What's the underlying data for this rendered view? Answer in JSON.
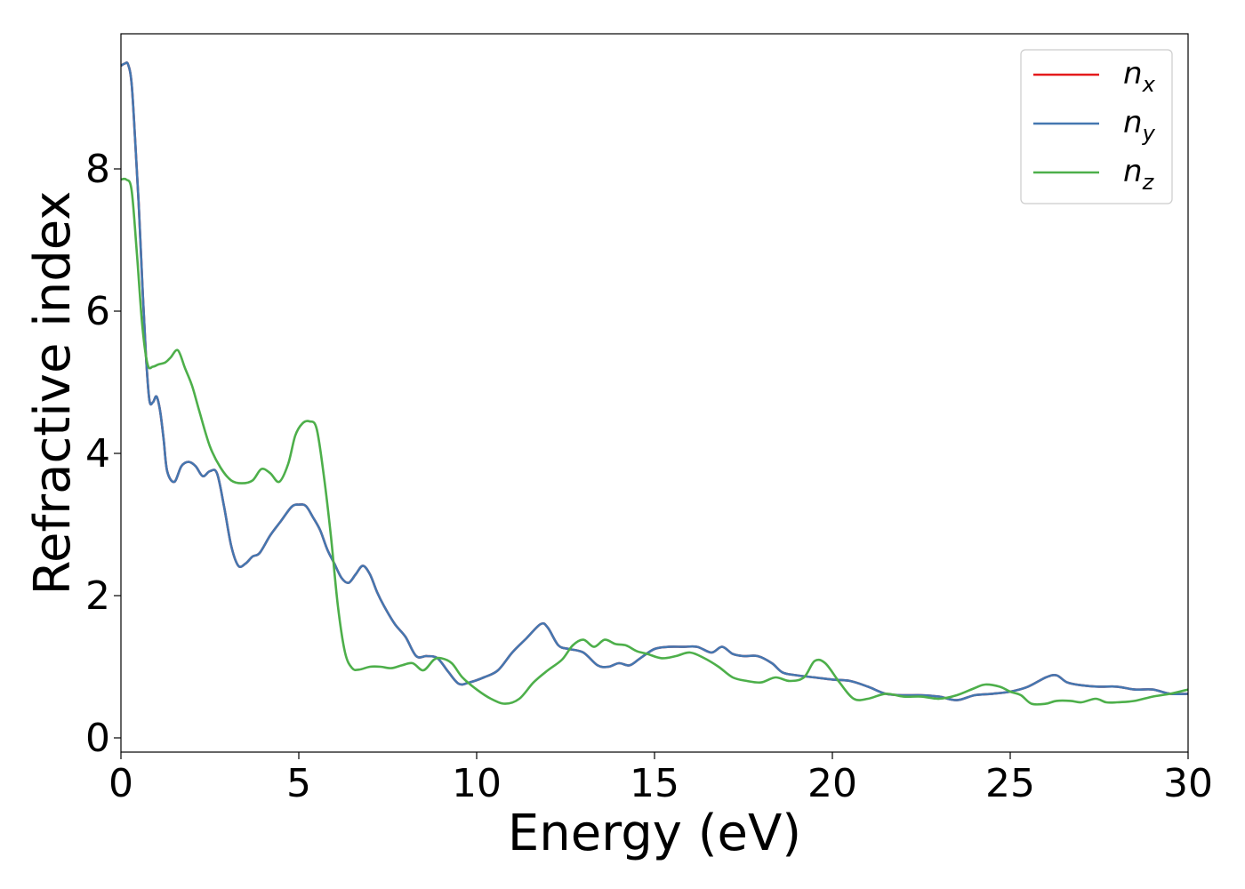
{
  "chart_data": {
    "type": "line",
    "title": "",
    "xlabel": "Energy (eV)",
    "ylabel": "Refractive index",
    "xlim": [
      0,
      30
    ],
    "ylim": [
      -0.2,
      9.9
    ],
    "xticks": [
      0,
      5,
      10,
      15,
      20,
      25,
      30
    ],
    "xtick_labels": [
      "0",
      "5",
      "10",
      "15",
      "20",
      "25",
      "30"
    ],
    "yticks": [
      0,
      2,
      4,
      6,
      8
    ],
    "ytick_labels": [
      "0",
      "2",
      "4",
      "6",
      "8"
    ],
    "grid": false,
    "legend_position": "top-right",
    "series": [
      {
        "name": "n_x",
        "label_base": "n",
        "label_sub": "x",
        "color": "#e41a1c",
        "x": [
          0,
          0.1,
          0.2,
          0.3,
          0.4,
          0.5,
          0.6,
          0.7,
          0.8,
          0.9,
          1.0,
          1.1,
          1.2,
          1.3,
          1.5,
          1.7,
          1.9,
          2.1,
          2.3,
          2.5,
          2.7,
          2.9,
          3.1,
          3.3,
          3.5,
          3.7,
          3.9,
          4.2,
          4.5,
          4.8,
          5.0,
          5.2,
          5.4,
          5.6,
          5.8,
          6.0,
          6.2,
          6.4,
          6.6,
          6.8,
          7.0,
          7.2,
          7.4,
          7.7,
          8.0,
          8.3,
          8.6,
          8.9,
          9.2,
          9.5,
          9.8,
          10.2,
          10.6,
          11.0,
          11.4,
          11.8,
          12.0,
          12.3,
          12.6,
          13.0,
          13.4,
          13.7,
          14.0,
          14.3,
          14.6,
          15.0,
          15.4,
          15.8,
          16.2,
          16.6,
          16.9,
          17.2,
          17.5,
          17.9,
          18.3,
          18.6,
          19.0,
          19.5,
          20.0,
          20.5,
          21.0,
          21.5,
          22.0,
          22.5,
          23.0,
          23.5,
          24.0,
          24.5,
          25.0,
          25.5,
          26.0,
          26.3,
          26.6,
          27.0,
          27.5,
          28.0,
          28.5,
          29.0,
          29.5,
          30.0
        ],
        "y": [
          9.45,
          9.48,
          9.47,
          9.2,
          8.4,
          7.5,
          6.4,
          5.4,
          4.75,
          4.72,
          4.8,
          4.6,
          4.2,
          3.75,
          3.6,
          3.82,
          3.88,
          3.82,
          3.68,
          3.75,
          3.72,
          3.25,
          2.7,
          2.42,
          2.45,
          2.55,
          2.6,
          2.85,
          3.05,
          3.25,
          3.28,
          3.26,
          3.1,
          2.92,
          2.65,
          2.45,
          2.25,
          2.18,
          2.3,
          2.42,
          2.3,
          2.05,
          1.85,
          1.6,
          1.42,
          1.15,
          1.15,
          1.12,
          0.93,
          0.76,
          0.78,
          0.85,
          0.95,
          1.2,
          1.4,
          1.6,
          1.55,
          1.3,
          1.25,
          1.2,
          1.02,
          1.0,
          1.05,
          1.02,
          1.12,
          1.25,
          1.28,
          1.28,
          1.28,
          1.2,
          1.28,
          1.18,
          1.15,
          1.15,
          1.05,
          0.92,
          0.88,
          0.85,
          0.82,
          0.8,
          0.72,
          0.62,
          0.6,
          0.6,
          0.58,
          0.53,
          0.6,
          0.62,
          0.65,
          0.72,
          0.85,
          0.88,
          0.78,
          0.74,
          0.72,
          0.72,
          0.68,
          0.68,
          0.62,
          0.62
        ]
      },
      {
        "name": "n_y",
        "label_base": "n",
        "label_sub": "y",
        "color": "#4477b0",
        "x": [
          0,
          0.1,
          0.2,
          0.3,
          0.4,
          0.5,
          0.6,
          0.7,
          0.8,
          0.9,
          1.0,
          1.1,
          1.2,
          1.3,
          1.5,
          1.7,
          1.9,
          2.1,
          2.3,
          2.5,
          2.7,
          2.9,
          3.1,
          3.3,
          3.5,
          3.7,
          3.9,
          4.2,
          4.5,
          4.8,
          5.0,
          5.2,
          5.4,
          5.6,
          5.8,
          6.0,
          6.2,
          6.4,
          6.6,
          6.8,
          7.0,
          7.2,
          7.4,
          7.7,
          8.0,
          8.3,
          8.6,
          8.9,
          9.2,
          9.5,
          9.8,
          10.2,
          10.6,
          11.0,
          11.4,
          11.8,
          12.0,
          12.3,
          12.6,
          13.0,
          13.4,
          13.7,
          14.0,
          14.3,
          14.6,
          15.0,
          15.4,
          15.8,
          16.2,
          16.6,
          16.9,
          17.2,
          17.5,
          17.9,
          18.3,
          18.6,
          19.0,
          19.5,
          20.0,
          20.5,
          21.0,
          21.5,
          22.0,
          22.5,
          23.0,
          23.5,
          24.0,
          24.5,
          25.0,
          25.5,
          26.0,
          26.3,
          26.6,
          27.0,
          27.5,
          28.0,
          28.5,
          29.0,
          29.5,
          30.0
        ],
        "y": [
          9.45,
          9.48,
          9.47,
          9.2,
          8.4,
          7.5,
          6.4,
          5.4,
          4.75,
          4.72,
          4.8,
          4.6,
          4.2,
          3.75,
          3.6,
          3.82,
          3.88,
          3.82,
          3.68,
          3.75,
          3.72,
          3.25,
          2.7,
          2.42,
          2.45,
          2.55,
          2.6,
          2.85,
          3.05,
          3.25,
          3.28,
          3.26,
          3.1,
          2.92,
          2.65,
          2.45,
          2.25,
          2.18,
          2.3,
          2.42,
          2.3,
          2.05,
          1.85,
          1.6,
          1.42,
          1.15,
          1.15,
          1.12,
          0.93,
          0.76,
          0.78,
          0.85,
          0.95,
          1.2,
          1.4,
          1.6,
          1.55,
          1.3,
          1.25,
          1.2,
          1.02,
          1.0,
          1.05,
          1.02,
          1.12,
          1.25,
          1.28,
          1.28,
          1.28,
          1.2,
          1.28,
          1.18,
          1.15,
          1.15,
          1.05,
          0.92,
          0.88,
          0.85,
          0.82,
          0.8,
          0.72,
          0.62,
          0.6,
          0.6,
          0.58,
          0.53,
          0.6,
          0.62,
          0.65,
          0.72,
          0.85,
          0.88,
          0.78,
          0.74,
          0.72,
          0.72,
          0.68,
          0.68,
          0.62,
          0.62
        ]
      },
      {
        "name": "n_z",
        "label_base": "n",
        "label_sub": "z",
        "color": "#4daf4a",
        "x": [
          0,
          0.15,
          0.3,
          0.45,
          0.6,
          0.75,
          0.9,
          1.05,
          1.25,
          1.4,
          1.6,
          1.8,
          2.0,
          2.2,
          2.5,
          2.8,
          3.1,
          3.4,
          3.7,
          3.95,
          4.2,
          4.45,
          4.7,
          4.9,
          5.1,
          5.3,
          5.5,
          5.7,
          5.9,
          6.1,
          6.3,
          6.5,
          6.7,
          7.0,
          7.3,
          7.6,
          7.9,
          8.2,
          8.5,
          8.8,
          9.0,
          9.3,
          9.6,
          10.0,
          10.4,
          10.8,
          11.2,
          11.6,
          12.0,
          12.4,
          12.7,
          13.0,
          13.3,
          13.6,
          13.9,
          14.2,
          14.5,
          14.8,
          15.2,
          15.6,
          16.0,
          16.4,
          16.8,
          17.2,
          17.6,
          18.0,
          18.4,
          18.8,
          19.2,
          19.5,
          19.8,
          20.2,
          20.6,
          21.0,
          21.5,
          22.0,
          22.5,
          23.0,
          23.5,
          24.0,
          24.3,
          24.7,
          25.0,
          25.3,
          25.6,
          26.0,
          26.3,
          26.7,
          27.0,
          27.4,
          27.7,
          28.0,
          28.5,
          29.0,
          29.5,
          30.0
        ],
        "y": [
          7.85,
          7.85,
          7.7,
          6.8,
          5.8,
          5.25,
          5.22,
          5.25,
          5.28,
          5.35,
          5.45,
          5.2,
          4.95,
          4.6,
          4.1,
          3.8,
          3.62,
          3.58,
          3.62,
          3.78,
          3.72,
          3.6,
          3.85,
          4.25,
          4.42,
          4.45,
          4.35,
          3.7,
          2.85,
          1.85,
          1.2,
          0.98,
          0.96,
          1.0,
          1.0,
          0.98,
          1.02,
          1.05,
          0.95,
          1.1,
          1.12,
          1.05,
          0.85,
          0.68,
          0.55,
          0.48,
          0.55,
          0.78,
          0.95,
          1.1,
          1.3,
          1.38,
          1.28,
          1.38,
          1.32,
          1.3,
          1.22,
          1.18,
          1.12,
          1.15,
          1.2,
          1.12,
          1.0,
          0.85,
          0.8,
          0.78,
          0.85,
          0.8,
          0.85,
          1.08,
          1.05,
          0.78,
          0.55,
          0.55,
          0.62,
          0.58,
          0.58,
          0.55,
          0.6,
          0.7,
          0.75,
          0.72,
          0.65,
          0.6,
          0.48,
          0.48,
          0.52,
          0.52,
          0.5,
          0.55,
          0.5,
          0.5,
          0.52,
          0.58,
          0.62,
          0.68
        ]
      }
    ]
  }
}
